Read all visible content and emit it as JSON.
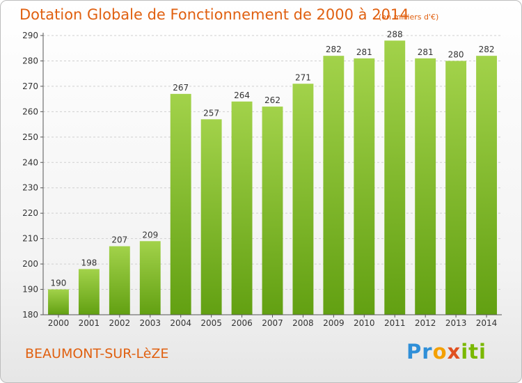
{
  "header": {
    "title": "Dotation Globale de Fonctionnement de 2000 à 2014",
    "unit": "(en milliers d'€)"
  },
  "footer": {
    "commune": "BEAUMONT-SUR-LèZE",
    "logo_parts": [
      "Pr",
      "o",
      "x",
      "iti"
    ]
  },
  "colors": {
    "accent": "#e06010",
    "bar_top": "#a2d24a",
    "bar_bottom": "#62a012",
    "grid": "#cfcfcf"
  },
  "chart_data": {
    "type": "bar",
    "title": "Dotation Globale de Fonctionnement de 2000 à 2014",
    "subtitle": "(en milliers d'€)",
    "xlabel": "",
    "ylabel": "",
    "categories": [
      "2000",
      "2001",
      "2002",
      "2003",
      "2004",
      "2005",
      "2006",
      "2007",
      "2008",
      "2009",
      "2010",
      "2011",
      "2012",
      "2013",
      "2014"
    ],
    "values": [
      190,
      198,
      207,
      209,
      267,
      257,
      264,
      262,
      271,
      282,
      281,
      288,
      281,
      280,
      282
    ],
    "ylim": [
      180,
      290
    ],
    "yticks": [
      180,
      190,
      200,
      210,
      220,
      230,
      240,
      250,
      260,
      270,
      280,
      290
    ],
    "grid": true,
    "data_labels": true
  }
}
